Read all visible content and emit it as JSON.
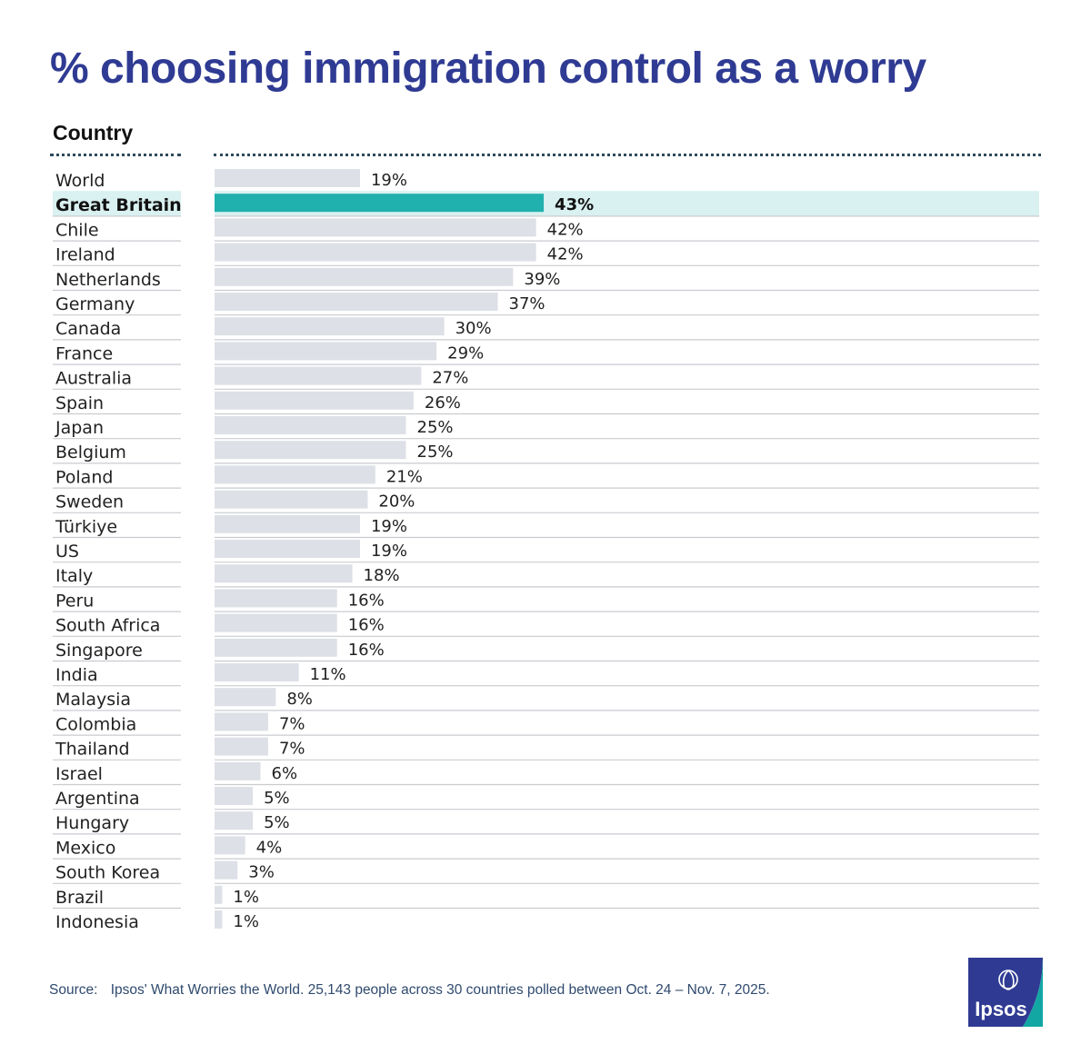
{
  "title": "% choosing immigration control as a worry",
  "column_header": "Country",
  "source_label": "Source:",
  "source_text": "Ipsos' What Worries the World. 25,143 people across 30 countries polled between Oct. 24 – Nov. 7, 2025.",
  "logo_text": "Ipsos",
  "colors": {
    "title": "#2f3b93",
    "bar": "#dde0e6",
    "highlight_bar": "#20b0ad",
    "highlight_band": "#d9f1f0",
    "logo_blue": "#2f3b93",
    "logo_teal": "#13a7a4"
  },
  "chart_data": {
    "type": "bar",
    "orientation": "horizontal",
    "title": "% choosing immigration control as a worry",
    "highlight": "Great Britain",
    "value_suffix": "%",
    "xlim": [
      0,
      100
    ],
    "grid": false,
    "categories": [
      "World",
      "Great Britain",
      "Chile",
      "Ireland",
      "Netherlands",
      "Germany",
      "Canada",
      "France",
      "Australia",
      "Spain",
      "Japan",
      "Belgium",
      "Poland",
      "Sweden",
      "Türkiye",
      "US",
      "Italy",
      "Peru",
      "South Africa",
      "Singapore",
      "India",
      "Malaysia",
      "Colombia",
      "Thailand",
      "Israel",
      "Argentina",
      "Hungary",
      "Mexico",
      "South Korea",
      "Brazil",
      "Indonesia"
    ],
    "values": [
      19,
      43,
      42,
      42,
      39,
      37,
      30,
      29,
      27,
      26,
      25,
      25,
      21,
      20,
      19,
      19,
      18,
      16,
      16,
      16,
      11,
      8,
      7,
      7,
      6,
      5,
      5,
      4,
      3,
      1,
      1
    ],
    "labels": [
      "19%",
      "43%",
      "42%",
      "42%",
      "39%",
      "37%",
      "30%",
      "29%",
      "27%",
      "26%",
      "25%",
      "25%",
      "21%",
      "20%",
      "19%",
      "19%",
      "18%",
      "16%",
      "16%",
      "16%",
      "11%",
      "8%",
      "7%",
      "7%",
      "6%",
      "5%",
      "5%",
      "4%",
      "3%",
      "1%",
      "1%"
    ]
  }
}
